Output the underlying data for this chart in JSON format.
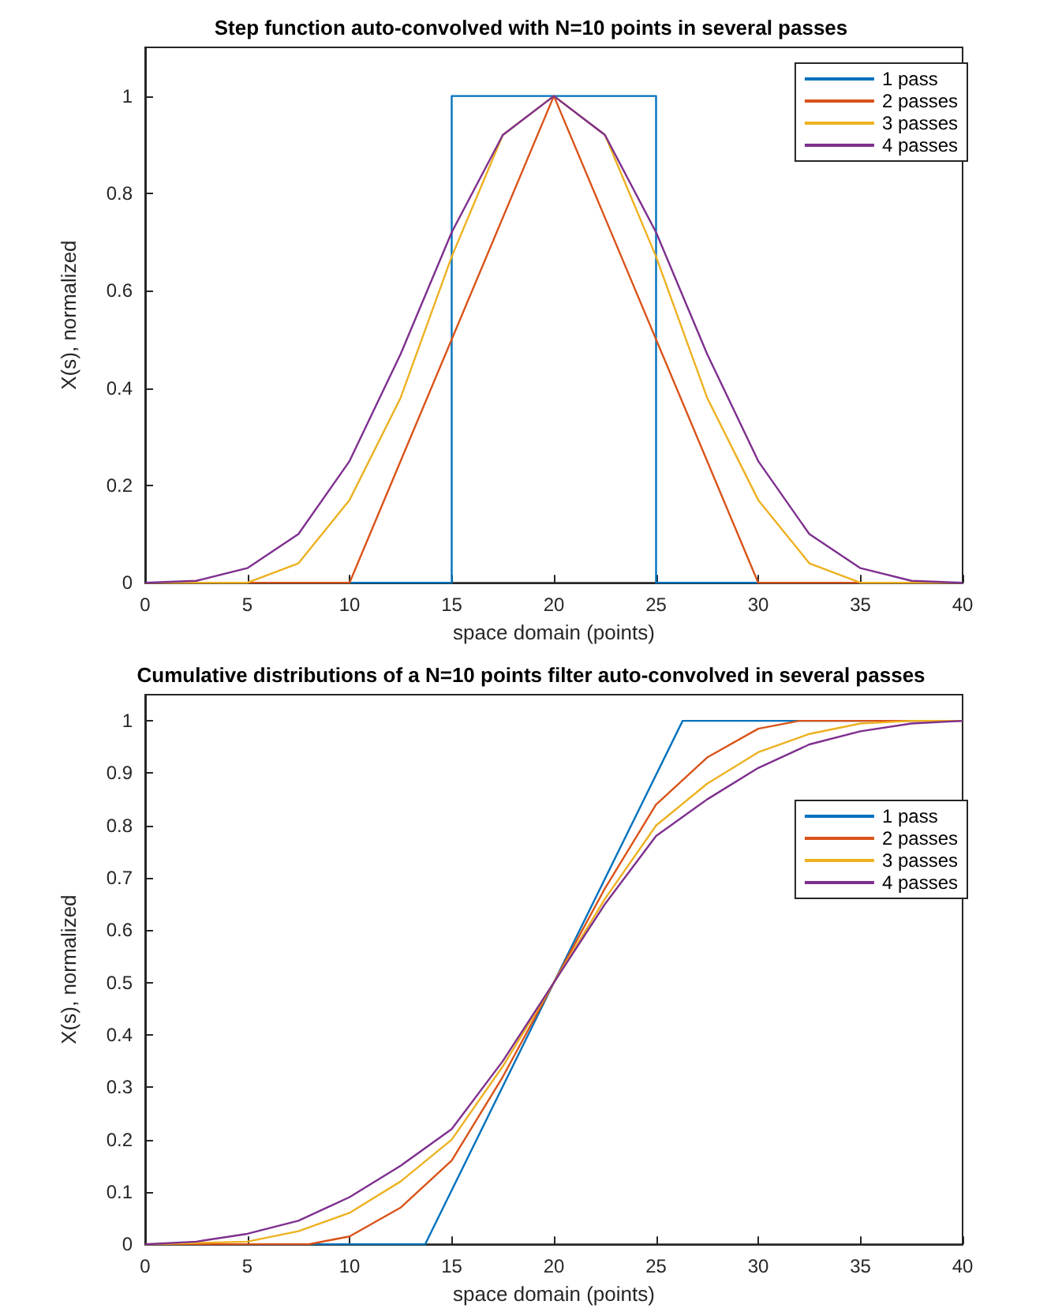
{
  "chart_data": [
    {
      "type": "line",
      "title": "Step function auto-convolved with N=10 points in several passes",
      "xlabel": "space domain (points)",
      "ylabel": "X(s), normalized",
      "xlim": [
        0,
        40
      ],
      "xticks": [
        0,
        5,
        10,
        15,
        20,
        25,
        30,
        35,
        40
      ],
      "ylim": [
        0,
        1.1
      ],
      "yticks": [
        0,
        0.2,
        0.4,
        0.6,
        0.8,
        1
      ],
      "grid": false,
      "legend": "top right",
      "marker": "none",
      "series": [
        {
          "name": "1 pass",
          "color": "#0072bd",
          "x": [
            0,
            15,
            15,
            25,
            25,
            40
          ],
          "values": [
            0,
            0,
            1,
            1,
            0,
            0
          ]
        },
        {
          "name": "2 passes",
          "color": "#d95319",
          "x": [
            0,
            10,
            20,
            30,
            40
          ],
          "values": [
            0,
            0,
            1,
            0,
            0
          ]
        },
        {
          "name": "3 passes",
          "color": "#edb120",
          "x": [
            0,
            5,
            7.5,
            10,
            12.5,
            15,
            17.5,
            20,
            22.5,
            25,
            27.5,
            30,
            32.5,
            35,
            40
          ],
          "values": [
            0,
            0,
            0.04,
            0.17,
            0.38,
            0.67,
            0.92,
            1,
            0.92,
            0.67,
            0.38,
            0.17,
            0.04,
            0,
            0
          ]
        },
        {
          "name": "4 passes",
          "color": "#7e2f8e",
          "x": [
            0,
            2.5,
            5,
            7.5,
            10,
            12.5,
            15,
            17.5,
            20,
            22.5,
            25,
            27.5,
            30,
            32.5,
            35,
            37.5,
            40
          ],
          "values": [
            0,
            0.004,
            0.03,
            0.1,
            0.25,
            0.47,
            0.72,
            0.92,
            1,
            0.92,
            0.72,
            0.47,
            0.25,
            0.1,
            0.03,
            0.004,
            0
          ]
        }
      ]
    },
    {
      "type": "line",
      "title": "Cumulative distributions of a N=10 points filter auto-convolved in several passes",
      "xlabel": "space domain (points)",
      "ylabel": "X(s), normalized",
      "xlim": [
        0,
        40
      ],
      "xticks": [
        0,
        5,
        10,
        15,
        20,
        25,
        30,
        35,
        40
      ],
      "ylim": [
        0,
        1.05
      ],
      "yticks": [
        0,
        0.1,
        0.2,
        0.3,
        0.4,
        0.5,
        0.6,
        0.7,
        0.8,
        0.9,
        1
      ],
      "grid": false,
      "legend": "top right",
      "marker": "none",
      "series": [
        {
          "name": "1 pass",
          "color": "#0072bd",
          "x": [
            0,
            13.7,
            26.3,
            40
          ],
          "values": [
            0,
            0,
            1,
            1
          ]
        },
        {
          "name": "2 passes",
          "color": "#d95319",
          "x": [
            0,
            8,
            10,
            12.5,
            15,
            17.5,
            20,
            22.5,
            25,
            27.5,
            30,
            32,
            40
          ],
          "values": [
            0,
            0,
            0.015,
            0.07,
            0.16,
            0.32,
            0.5,
            0.68,
            0.84,
            0.93,
            0.985,
            1,
            1
          ]
        },
        {
          "name": "3 passes",
          "color": "#edb120",
          "x": [
            0,
            5,
            7.5,
            10,
            12.5,
            15,
            17.5,
            20,
            22.5,
            25,
            27.5,
            30,
            32.5,
            35,
            37.5,
            40
          ],
          "values": [
            0,
            0.005,
            0.025,
            0.06,
            0.12,
            0.2,
            0.34,
            0.5,
            0.66,
            0.8,
            0.88,
            0.94,
            0.975,
            0.995,
            1,
            1
          ]
        },
        {
          "name": "4 passes",
          "color": "#7e2f8e",
          "x": [
            0,
            2.5,
            5,
            7.5,
            10,
            12.5,
            15,
            17.5,
            20,
            22.5,
            25,
            27.5,
            30,
            32.5,
            35,
            37.5,
            40
          ],
          "values": [
            0,
            0.005,
            0.02,
            0.045,
            0.09,
            0.15,
            0.22,
            0.35,
            0.5,
            0.65,
            0.78,
            0.85,
            0.91,
            0.955,
            0.98,
            0.995,
            1
          ]
        }
      ]
    }
  ]
}
